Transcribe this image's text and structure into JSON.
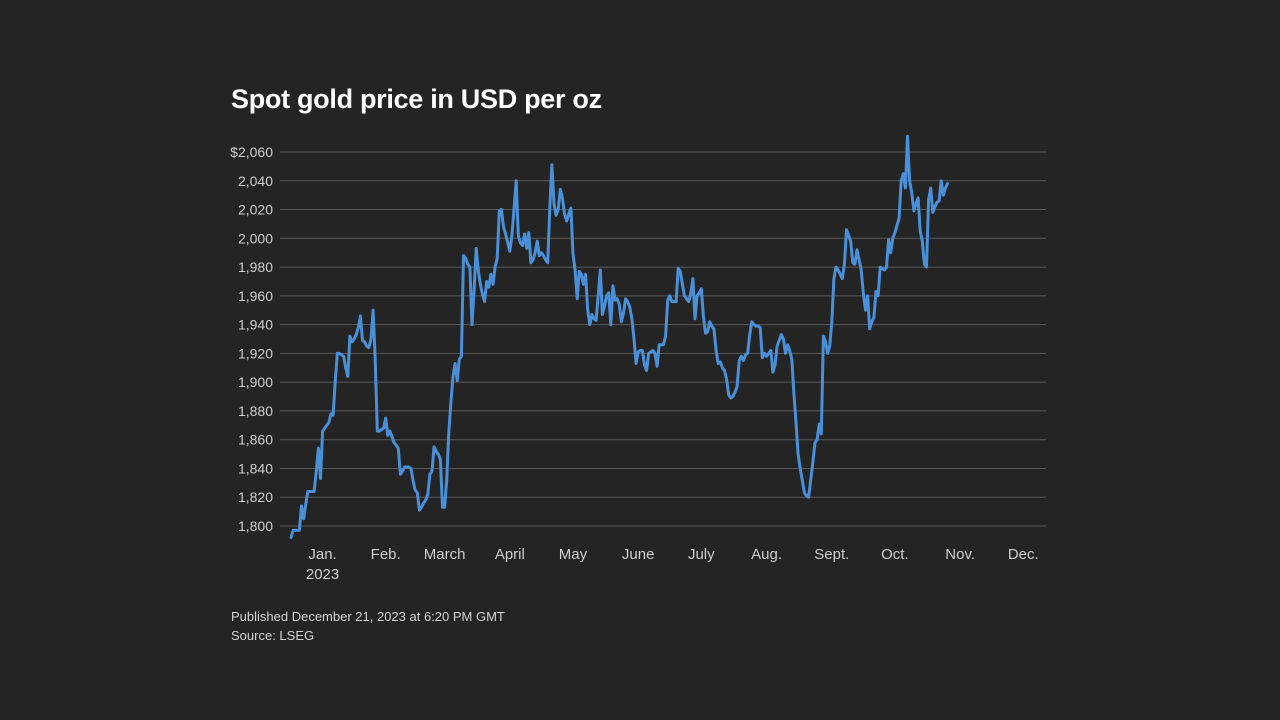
{
  "chart_data": {
    "type": "line",
    "title": "Spot gold price in USD per oz",
    "xlabel": "",
    "ylabel": "",
    "ylim": [
      1800,
      2060
    ],
    "yticks": [
      1800,
      1820,
      1840,
      1860,
      1880,
      1900,
      1920,
      1940,
      1960,
      1980,
      2000,
      2020,
      2040,
      2060
    ],
    "ytick_labels": [
      "1,800",
      "1,820",
      "1,840",
      "1,860",
      "1,880",
      "1,900",
      "1,920",
      "1,940",
      "1,960",
      "1,980",
      "2,000",
      "2,020",
      "2,040",
      "$2,060"
    ],
    "xlim": [
      1,
      356
    ],
    "xticks": [
      {
        "label": "Jan.",
        "sublabel": "2023",
        "day": 16
      },
      {
        "label": "Feb.",
        "day": 46
      },
      {
        "label": "March",
        "day": 74
      },
      {
        "label": "April",
        "day": 105
      },
      {
        "label": "May",
        "day": 135
      },
      {
        "label": "June",
        "day": 166
      },
      {
        "label": "July",
        "day": 196
      },
      {
        "label": "Aug.",
        "day": 227
      },
      {
        "label": "Sept.",
        "day": 258
      },
      {
        "label": "Oct.",
        "day": 288
      },
      {
        "label": "Nov.",
        "day": 319
      },
      {
        "label": "Dec.",
        "day": 349
      }
    ],
    "series": [
      {
        "name": "Spot gold",
        "color": "#4a90d9",
        "points": [
          [
            1,
            1792
          ],
          [
            2,
            1797
          ],
          [
            4,
            1797
          ],
          [
            5,
            1797
          ],
          [
            6,
            1814
          ],
          [
            7,
            1805
          ],
          [
            8,
            1815
          ],
          [
            9,
            1824
          ],
          [
            10,
            1824
          ],
          [
            12,
            1824
          ],
          [
            13,
            1838
          ],
          [
            14,
            1854
          ],
          [
            15,
            1833
          ],
          [
            16,
            1866
          ],
          [
            17,
            1868
          ],
          [
            18,
            1870
          ],
          [
            19,
            1872
          ],
          [
            20,
            1878
          ],
          [
            21,
            1877
          ],
          [
            22,
            1900
          ],
          [
            23,
            1920
          ],
          [
            24,
            1920
          ],
          [
            26,
            1918
          ],
          [
            27,
            1910
          ],
          [
            28,
            1904
          ],
          [
            29,
            1932
          ],
          [
            30,
            1928
          ],
          [
            31,
            1930
          ],
          [
            32,
            1933
          ],
          [
            33,
            1938
          ],
          [
            34,
            1946
          ],
          [
            35,
            1929
          ],
          [
            36,
            1928
          ],
          [
            37,
            1925
          ],
          [
            38,
            1924
          ],
          [
            39,
            1930
          ],
          [
            40,
            1950
          ],
          [
            41,
            1916
          ],
          [
            42,
            1866
          ],
          [
            43,
            1866
          ],
          [
            44,
            1867
          ],
          [
            45,
            1868
          ],
          [
            46,
            1875
          ],
          [
            47,
            1863
          ],
          [
            48,
            1866
          ],
          [
            49,
            1862
          ],
          [
            50,
            1858
          ],
          [
            51,
            1856
          ],
          [
            52,
            1854
          ],
          [
            53,
            1836
          ],
          [
            54,
            1838
          ],
          [
            55,
            1841
          ],
          [
            56,
            1841
          ],
          [
            57,
            1841
          ],
          [
            58,
            1840
          ],
          [
            59,
            1832
          ],
          [
            60,
            1825
          ],
          [
            61,
            1823
          ],
          [
            62,
            1811
          ],
          [
            63,
            1813
          ],
          [
            64,
            1816
          ],
          [
            65,
            1818
          ],
          [
            66,
            1822
          ],
          [
            67,
            1836
          ],
          [
            68,
            1838
          ],
          [
            69,
            1855
          ],
          [
            70,
            1852
          ],
          [
            71,
            1850
          ],
          [
            72,
            1846
          ],
          [
            73,
            1813
          ],
          [
            74,
            1813
          ],
          [
            75,
            1832
          ],
          [
            76,
            1865
          ],
          [
            77,
            1886
          ],
          [
            78,
            1904
          ],
          [
            79,
            1913
          ],
          [
            80,
            1901
          ],
          [
            81,
            1916
          ],
          [
            82,
            1918
          ],
          [
            83,
            1988
          ],
          [
            84,
            1986
          ],
          [
            85,
            1982
          ],
          [
            86,
            1980
          ],
          [
            87,
            1940
          ],
          [
            88,
            1964
          ],
          [
            89,
            1993
          ],
          [
            90,
            1978
          ],
          [
            91,
            1968
          ],
          [
            92,
            1961
          ],
          [
            93,
            1956
          ],
          [
            94,
            1970
          ],
          [
            95,
            1966
          ],
          [
            96,
            1975
          ],
          [
            97,
            1968
          ],
          [
            98,
            1980
          ],
          [
            99,
            1986
          ],
          [
            100,
            2019
          ],
          [
            101,
            2020
          ],
          [
            102,
            2008
          ],
          [
            103,
            2003
          ],
          [
            104,
            1997
          ],
          [
            105,
            1991
          ],
          [
            106,
            2002
          ],
          [
            107,
            2020
          ],
          [
            108,
            2040
          ],
          [
            109,
            2002
          ],
          [
            110,
            1997
          ],
          [
            111,
            1995
          ],
          [
            112,
            2003
          ],
          [
            113,
            1993
          ],
          [
            114,
            2004
          ],
          [
            115,
            1983
          ],
          [
            116,
            1985
          ],
          [
            117,
            1990
          ],
          [
            118,
            1998
          ],
          [
            119,
            1988
          ],
          [
            120,
            1990
          ],
          [
            121,
            1988
          ],
          [
            122,
            1985
          ],
          [
            123,
            1983
          ],
          [
            124,
            2021
          ],
          [
            125,
            2051
          ],
          [
            126,
            2024
          ],
          [
            127,
            2016
          ],
          [
            128,
            2020
          ],
          [
            129,
            2034
          ],
          [
            130,
            2028
          ],
          [
            131,
            2017
          ],
          [
            132,
            2012
          ],
          [
            133,
            2017
          ],
          [
            134,
            2021
          ],
          [
            135,
            1989
          ],
          [
            136,
            1978
          ],
          [
            137,
            1958
          ],
          [
            138,
            1977
          ],
          [
            139,
            1975
          ],
          [
            140,
            1968
          ],
          [
            141,
            1975
          ],
          [
            142,
            1950
          ],
          [
            143,
            1940
          ],
          [
            144,
            1947
          ],
          [
            145,
            1944
          ],
          [
            146,
            1943
          ],
          [
            147,
            1960
          ],
          [
            148,
            1978
          ],
          [
            149,
            1947
          ],
          [
            150,
            1953
          ],
          [
            151,
            1960
          ],
          [
            152,
            1962
          ],
          [
            153,
            1940
          ],
          [
            154,
            1967
          ],
          [
            155,
            1957
          ],
          [
            156,
            1958
          ],
          [
            157,
            1954
          ],
          [
            158,
            1942
          ],
          [
            159,
            1948
          ],
          [
            160,
            1958
          ],
          [
            161,
            1956
          ],
          [
            162,
            1952
          ],
          [
            163,
            1944
          ],
          [
            164,
            1930
          ],
          [
            165,
            1913
          ],
          [
            166,
            1921
          ],
          [
            167,
            1922
          ],
          [
            168,
            1922
          ],
          [
            169,
            1912
          ],
          [
            170,
            1908
          ],
          [
            171,
            1920
          ],
          [
            172,
            1921
          ],
          [
            173,
            1922
          ],
          [
            174,
            1920
          ],
          [
            175,
            1911
          ],
          [
            176,
            1926
          ],
          [
            177,
            1926
          ],
          [
            178,
            1926
          ],
          [
            179,
            1932
          ],
          [
            180,
            1957
          ],
          [
            181,
            1960
          ],
          [
            182,
            1956
          ],
          [
            183,
            1956
          ],
          [
            184,
            1956
          ],
          [
            185,
            1979
          ],
          [
            186,
            1977
          ],
          [
            187,
            1968
          ],
          [
            188,
            1960
          ],
          [
            189,
            1958
          ],
          [
            190,
            1956
          ],
          [
            191,
            1962
          ],
          [
            192,
            1972
          ],
          [
            193,
            1944
          ],
          [
            194,
            1960
          ],
          [
            195,
            1962
          ],
          [
            196,
            1965
          ],
          [
            197,
            1946
          ],
          [
            198,
            1934
          ],
          [
            199,
            1935
          ],
          [
            200,
            1942
          ],
          [
            201,
            1939
          ],
          [
            202,
            1937
          ],
          [
            203,
            1922
          ],
          [
            204,
            1913
          ],
          [
            205,
            1914
          ],
          [
            206,
            1910
          ],
          [
            207,
            1908
          ],
          [
            208,
            1902
          ],
          [
            209,
            1891
          ],
          [
            210,
            1889
          ],
          [
            211,
            1890
          ],
          [
            212,
            1893
          ],
          [
            213,
            1897
          ],
          [
            214,
            1915
          ],
          [
            215,
            1918
          ],
          [
            216,
            1915
          ],
          [
            217,
            1919
          ],
          [
            218,
            1920
          ],
          [
            219,
            1933
          ],
          [
            220,
            1942
          ],
          [
            221,
            1940
          ],
          [
            222,
            1939
          ],
          [
            223,
            1939
          ],
          [
            224,
            1938
          ],
          [
            225,
            1917
          ],
          [
            226,
            1920
          ],
          [
            227,
            1918
          ],
          [
            228,
            1920
          ],
          [
            229,
            1922
          ],
          [
            230,
            1907
          ],
          [
            231,
            1912
          ],
          [
            232,
            1925
          ],
          [
            233,
            1929
          ],
          [
            234,
            1933
          ],
          [
            235,
            1930
          ],
          [
            236,
            1920
          ],
          [
            237,
            1926
          ],
          [
            238,
            1922
          ],
          [
            239,
            1916
          ],
          [
            240,
            1892
          ],
          [
            241,
            1872
          ],
          [
            242,
            1850
          ],
          [
            243,
            1840
          ],
          [
            244,
            1832
          ],
          [
            245,
            1823
          ],
          [
            246,
            1821
          ],
          [
            247,
            1820
          ],
          [
            248,
            1832
          ],
          [
            249,
            1844
          ],
          [
            250,
            1858
          ],
          [
            251,
            1860
          ],
          [
            252,
            1871
          ],
          [
            253,
            1864
          ],
          [
            254,
            1932
          ],
          [
            255,
            1928
          ],
          [
            256,
            1920
          ],
          [
            257,
            1925
          ],
          [
            258,
            1942
          ],
          [
            259,
            1972
          ],
          [
            260,
            1980
          ],
          [
            261,
            1978
          ],
          [
            262,
            1975
          ],
          [
            263,
            1972
          ],
          [
            264,
            1982
          ],
          [
            265,
            2006
          ],
          [
            266,
            2002
          ],
          [
            267,
            1998
          ],
          [
            268,
            1983
          ],
          [
            269,
            1982
          ],
          [
            270,
            1992
          ],
          [
            271,
            1985
          ],
          [
            272,
            1978
          ],
          [
            273,
            1962
          ],
          [
            274,
            1950
          ],
          [
            275,
            1960
          ],
          [
            276,
            1937
          ],
          [
            277,
            1942
          ],
          [
            278,
            1945
          ],
          [
            279,
            1963
          ],
          [
            280,
            1960
          ],
          [
            281,
            1980
          ],
          [
            282,
            1979
          ],
          [
            283,
            1978
          ],
          [
            284,
            1980
          ],
          [
            285,
            1999
          ],
          [
            286,
            1990
          ],
          [
            287,
            2000
          ],
          [
            288,
            2004
          ],
          [
            289,
            2009
          ],
          [
            290,
            2014
          ],
          [
            291,
            2040
          ],
          [
            292,
            2045
          ],
          [
            293,
            2035
          ],
          [
            294,
            2071
          ],
          [
            295,
            2040
          ],
          [
            296,
            2032
          ],
          [
            297,
            2019
          ],
          [
            298,
            2024
          ],
          [
            299,
            2028
          ],
          [
            300,
            2005
          ],
          [
            301,
            1998
          ],
          [
            302,
            1982
          ],
          [
            303,
            1980
          ],
          [
            304,
            2027
          ],
          [
            305,
            2035
          ],
          [
            306,
            2018
          ],
          [
            307,
            2022
          ],
          [
            308,
            2025
          ],
          [
            309,
            2026
          ],
          [
            310,
            2040
          ],
          [
            311,
            2030
          ],
          [
            312,
            2035
          ],
          [
            313,
            2038
          ]
        ]
      }
    ]
  },
  "footer": {
    "published": "Published December 21, 2023 at 6:20 PM GMT",
    "source": "Source: LSEG"
  }
}
